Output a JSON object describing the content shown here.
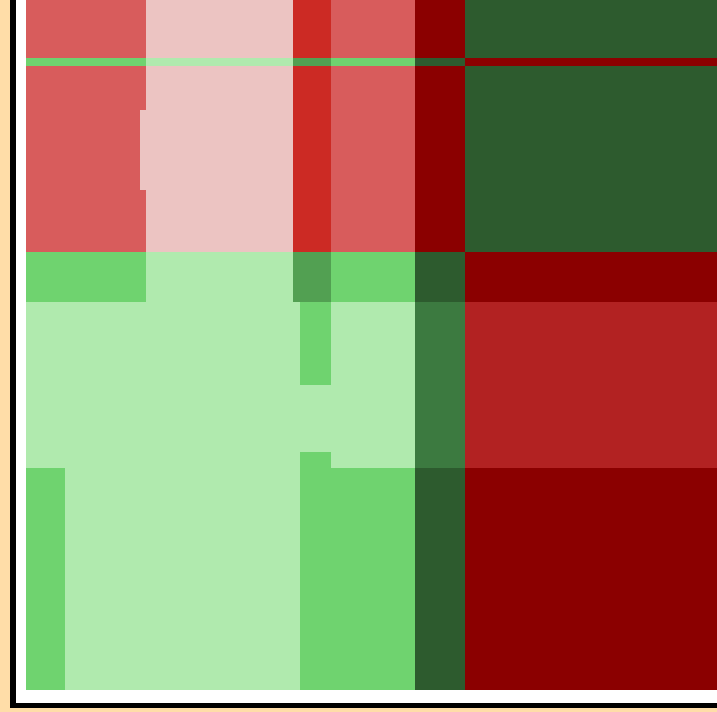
{
  "colors": {
    "background": "#FFDDA8",
    "frame": "#000000",
    "matte": "#FFFFFF",
    "red_light": "#D85C5C",
    "red_pale": "#ECC4C2",
    "red_bright": "#CC2A24",
    "red_mid": "#B22222",
    "red_dark": "#8B0000",
    "green_pale": "#B0EAAE",
    "green_light": "#6FD36F",
    "green_mid": "#52A052",
    "green_deep": "#3C7A40",
    "green_dark": "#2D5B2E"
  }
}
